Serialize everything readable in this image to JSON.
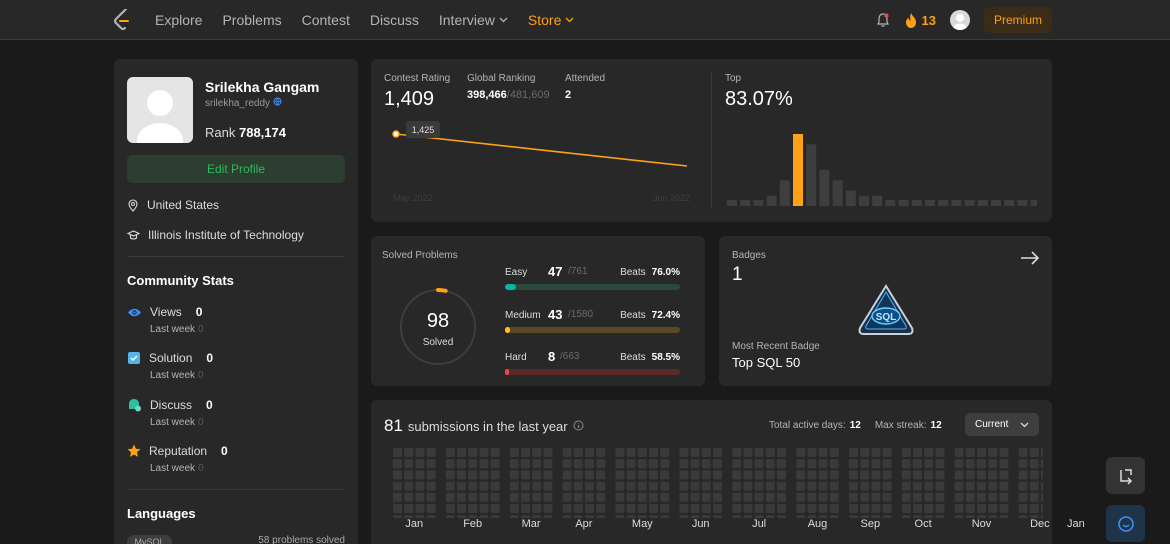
{
  "nav": {
    "links": [
      "Explore",
      "Problems",
      "Contest",
      "Discuss",
      "Interview",
      "Store"
    ],
    "streak": "13",
    "premium": "Premium",
    "colors": {
      "accent": "#ffa116",
      "bg": "#282828"
    }
  },
  "profile": {
    "name": "Srilekha Gangam",
    "username": "srilekha_reddy",
    "rank_label": "Rank",
    "rank_value": "788,174",
    "edit_label": "Edit Profile",
    "location": "United States",
    "school": "Illinois Institute of Technology"
  },
  "community": {
    "title": "Community Stats",
    "stats": [
      {
        "label": "Views",
        "value": "0",
        "sub_label": "Last week",
        "sub_value": "0",
        "icon": "eye-icon",
        "color": "#3e8ef7"
      },
      {
        "label": "Solution",
        "value": "0",
        "sub_label": "Last week",
        "sub_value": "0",
        "icon": "solution-icon",
        "color": "#52b4e8"
      },
      {
        "label": "Discuss",
        "value": "0",
        "sub_label": "Last week",
        "sub_value": "0",
        "icon": "discuss-icon",
        "color": "#2fbf9f"
      },
      {
        "label": "Reputation",
        "value": "0",
        "sub_label": "Last week",
        "sub_value": "0",
        "icon": "star-icon",
        "color": "#ffa116"
      }
    ],
    "languages_title": "Languages",
    "lang_name": "MySQL",
    "lang_count": "58 problems solved"
  },
  "contest": {
    "rating_label": "Contest Rating",
    "rating": "1,409",
    "global_label": "Global Ranking",
    "global_rank": "398,466",
    "global_total": "/481,609",
    "attended_label": "Attended",
    "attended": "2",
    "top_label": "Top",
    "top_value": "83.07%",
    "point_label": "1,425",
    "x_start": "May 2022",
    "x_end": "Jun 2022",
    "line_values": [
      1425,
      1409
    ],
    "histogram": [
      1,
      1,
      1,
      2,
      5,
      14,
      12,
      7,
      5,
      3,
      2,
      2,
      1,
      1,
      1,
      1,
      1,
      1,
      1,
      1,
      1,
      1,
      1,
      1
    ],
    "highlight_index": 5
  },
  "solved": {
    "title": "Solved Problems",
    "total": "98",
    "total_label": "Solved",
    "ring_fraction": 0.033,
    "difficulties": [
      {
        "name": "Easy",
        "count": "47",
        "total": "/761",
        "beats_label": "Beats",
        "beats": "76.0%",
        "fraction": 0.062,
        "color": "#00b8a3",
        "track": "#2a4b3c"
      },
      {
        "name": "Medium",
        "count": "43",
        "total": "/1580",
        "beats_label": "Beats",
        "beats": "72.4%",
        "fraction": 0.027,
        "color": "#ffc01e",
        "track": "#5a4a24"
      },
      {
        "name": "Hard",
        "count": "8",
        "total": "/663",
        "beats_label": "Beats",
        "beats": "58.5%",
        "fraction": 0.012,
        "color": "#ef4743",
        "track": "#5a2a2a"
      }
    ]
  },
  "badges": {
    "title": "Badges",
    "count": "1",
    "recent_label": "Most Recent Badge",
    "recent_name": "Top SQL 50",
    "badge_text": "SQL"
  },
  "submissions": {
    "count": "81",
    "text": "submissions in the last year",
    "active_label": "Total active days:",
    "active_value": "12",
    "streak_label": "Max streak:",
    "streak_value": "12",
    "select_value": "Current",
    "months": [
      "Jan",
      "Feb",
      "Mar",
      "Apr",
      "May",
      "Jun",
      "Jul",
      "Aug",
      "Sep",
      "Oct",
      "Nov",
      "Dec",
      "Jan"
    ]
  }
}
